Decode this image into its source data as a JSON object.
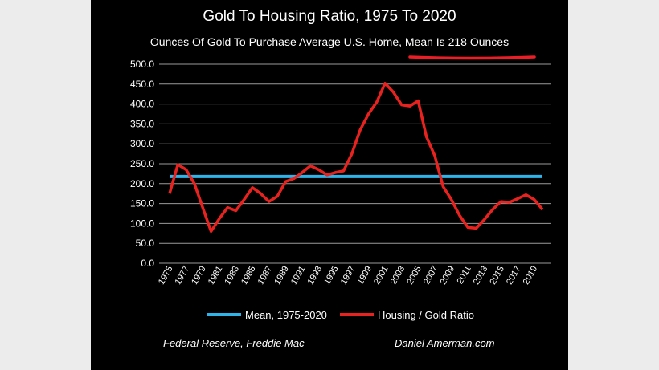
{
  "chart_data": {
    "type": "line",
    "title": "Gold To Housing Ratio, 1975 To 2020",
    "subtitle": "Ounces Of Gold To Purchase Average U.S. Home, Mean Is 218 Ounces",
    "xlabel": "",
    "ylabel": "",
    "x": [
      1975,
      1976,
      1977,
      1978,
      1979,
      1980,
      1981,
      1982,
      1983,
      1984,
      1985,
      1986,
      1987,
      1988,
      1989,
      1990,
      1991,
      1992,
      1993,
      1994,
      1995,
      1996,
      1997,
      1998,
      1999,
      2000,
      2001,
      2002,
      2003,
      2004,
      2005,
      2006,
      2007,
      2008,
      2009,
      2010,
      2011,
      2012,
      2013,
      2014,
      2015,
      2016,
      2017,
      2018,
      2019,
      2020
    ],
    "x_tick_labels": [
      "1975",
      "1977",
      "1979",
      "1981",
      "1983",
      "1985",
      "1987",
      "1989",
      "1991",
      "1993",
      "1995",
      "1997",
      "1999",
      "2001",
      "2003",
      "2005",
      "2007",
      "2009",
      "2011",
      "2013",
      "2015",
      "2017",
      "2019"
    ],
    "y_tick_labels": [
      "0.0",
      "50.0",
      "100.0",
      "150.0",
      "200.0",
      "250.0",
      "300.0",
      "350.0",
      "400.0",
      "450.0",
      "500.0"
    ],
    "ylim": [
      0,
      500
    ],
    "grid": "horizontal",
    "legend_position": "bottom",
    "series": [
      {
        "name": "Mean, 1975-2020",
        "color": "#2fb4e9",
        "values": [
          218,
          218,
          218,
          218,
          218,
          218,
          218,
          218,
          218,
          218,
          218,
          218,
          218,
          218,
          218,
          218,
          218,
          218,
          218,
          218,
          218,
          218,
          218,
          218,
          218,
          218,
          218,
          218,
          218,
          218,
          218,
          218,
          218,
          218,
          218,
          218,
          218,
          218,
          218,
          218,
          218,
          218,
          218,
          218,
          218,
          218
        ]
      },
      {
        "name": "Housing / Gold Ratio",
        "color": "#e8231f",
        "values": [
          175,
          248,
          235,
          200,
          140,
          80,
          112,
          140,
          132,
          160,
          190,
          175,
          155,
          168,
          205,
          213,
          228,
          245,
          235,
          222,
          228,
          232,
          275,
          335,
          375,
          405,
          452,
          430,
          398,
          395,
          408,
          318,
          270,
          193,
          160,
          120,
          90,
          88,
          110,
          135,
          155,
          153,
          162,
          172,
          160,
          135
        ]
      }
    ]
  },
  "source_left": "Federal Reserve, Freddie Mac",
  "source_right": "Daniel Amerman.com",
  "annotation_color": "#ee1c25"
}
